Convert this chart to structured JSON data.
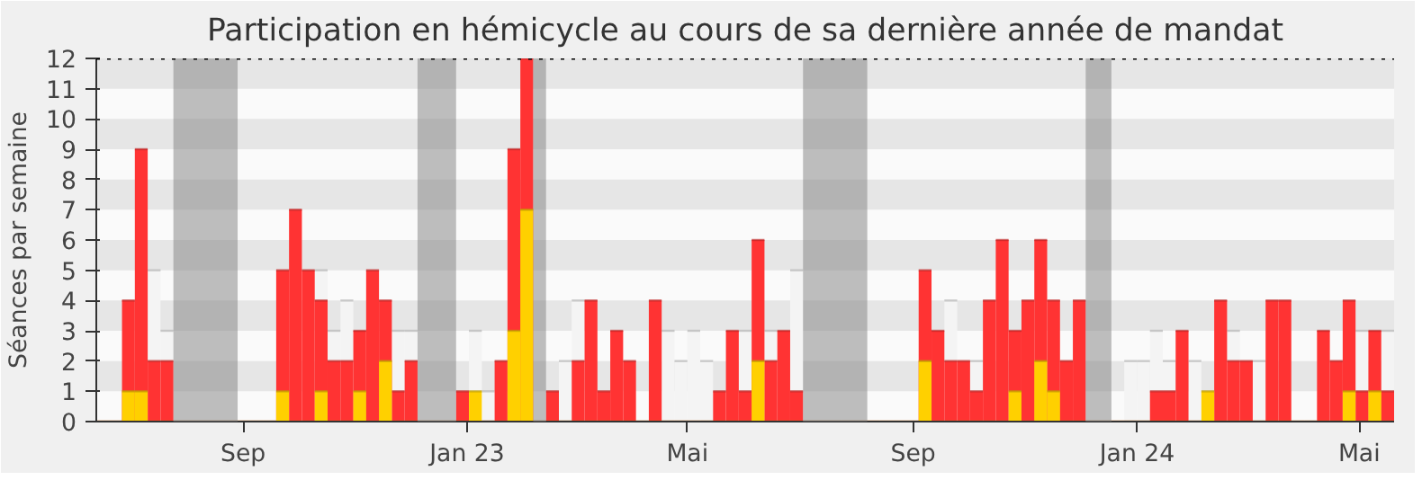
{
  "chart_data": {
    "type": "bar",
    "title": "Participation en hémicycle au cours de sa dernière année de mandat",
    "ylabel": "Séances par semaine",
    "x": [
      "2022-06-13",
      "2022-06-20",
      "2022-06-27",
      "2022-07-04",
      "2022-07-11",
      "2022-07-18",
      "2022-07-25",
      "2022-08-01",
      "2022-08-08",
      "2022-08-15",
      "2022-08-22",
      "2022-08-29",
      "2022-09-05",
      "2022-09-12",
      "2022-09-19",
      "2022-09-26",
      "2022-10-03",
      "2022-10-10",
      "2022-10-17",
      "2022-10-24",
      "2022-10-31",
      "2022-11-07",
      "2022-11-14",
      "2022-11-21",
      "2022-11-28",
      "2022-12-05",
      "2022-12-12",
      "2022-12-19",
      "2022-12-26",
      "2023-01-02",
      "2023-01-09",
      "2023-01-16",
      "2023-01-23",
      "2023-01-30",
      "2023-02-06",
      "2023-02-13",
      "2023-02-20",
      "2023-02-27",
      "2023-03-06",
      "2023-03-13",
      "2023-03-20",
      "2023-03-27",
      "2023-04-03",
      "2023-04-10",
      "2023-04-17",
      "2023-04-24",
      "2023-05-01",
      "2023-05-08",
      "2023-05-15",
      "2023-05-22",
      "2023-05-29",
      "2023-06-05",
      "2023-06-12",
      "2023-06-19",
      "2023-06-26",
      "2023-07-03",
      "2023-07-10",
      "2023-07-17",
      "2023-07-24",
      "2023-07-31",
      "2023-08-07",
      "2023-08-14",
      "2023-08-21",
      "2023-08-28",
      "2023-09-04",
      "2023-09-11",
      "2023-09-18",
      "2023-09-25",
      "2023-10-02",
      "2023-10-09",
      "2023-10-16",
      "2023-10-23",
      "2023-10-30",
      "2023-11-06",
      "2023-11-13",
      "2023-11-20",
      "2023-11-27",
      "2023-12-04",
      "2023-12-11",
      "2023-12-18",
      "2023-12-25",
      "2024-01-01",
      "2024-01-08",
      "2024-01-15",
      "2024-01-22",
      "2024-01-29",
      "2024-02-05",
      "2024-02-12",
      "2024-02-19",
      "2024-02-26",
      "2024-03-04",
      "2024-03-11",
      "2024-03-18",
      "2024-03-25",
      "2024-04-01",
      "2024-04-08",
      "2024-04-15",
      "2024-04-22",
      "2024-04-29",
      "2024-05-06",
      "2024-05-13"
    ],
    "series": [
      {
        "color": "#f4f4f4",
        "values": [
          null,
          null,
          null,
          null,
          5,
          3,
          null,
          null,
          null,
          null,
          null,
          null,
          null,
          null,
          null,
          null,
          null,
          5,
          3,
          4,
          null,
          null,
          null,
          3,
          3,
          null,
          null,
          null,
          null,
          3,
          1,
          null,
          null,
          null,
          null,
          null,
          2,
          4,
          null,
          null,
          null,
          null,
          null,
          null,
          3,
          2,
          3,
          2,
          null,
          null,
          3,
          null,
          3,
          null,
          5,
          null,
          null,
          null,
          null,
          null,
          null,
          null,
          null,
          null,
          null,
          null,
          4,
          null,
          2,
          null,
          null,
          null,
          null,
          null,
          null,
          null,
          null,
          null,
          null,
          null,
          2,
          2,
          3,
          2,
          null,
          2,
          null,
          null,
          3,
          null,
          2,
          null,
          null,
          null,
          null,
          null,
          null,
          null,
          3,
          null,
          3
        ]
      },
      {
        "color": "#ff3333",
        "values": [
          0,
          0,
          4,
          9,
          2,
          2,
          0,
          0,
          0,
          0,
          0,
          0,
          0,
          0,
          5,
          7,
          5,
          4,
          2,
          2,
          3,
          5,
          4,
          1,
          2,
          0,
          0,
          0,
          1,
          null,
          0,
          2,
          9,
          12,
          0,
          1,
          0,
          2,
          4,
          1,
          3,
          2,
          0,
          4,
          0,
          0,
          0,
          0,
          1,
          3,
          1,
          6,
          2,
          3,
          1,
          0,
          0,
          0,
          0,
          0,
          0,
          0,
          0,
          0,
          5,
          3,
          2,
          2,
          1,
          4,
          6,
          3,
          4,
          6,
          4,
          2,
          4,
          0,
          0,
          0,
          0,
          0,
          1,
          1,
          3,
          0,
          null,
          4,
          2,
          2,
          0,
          4,
          4,
          0,
          0,
          3,
          2,
          4,
          1,
          3,
          1
        ]
      },
      {
        "color": "#ffd000",
        "values": [
          0,
          0,
          1,
          1,
          0,
          0,
          0,
          0,
          0,
          0,
          0,
          0,
          0,
          0,
          1,
          0,
          0,
          1,
          0,
          0,
          1,
          0,
          2,
          0,
          0,
          0,
          0,
          0,
          0,
          1,
          0,
          0,
          3,
          7,
          0,
          0,
          0,
          0,
          0,
          0,
          0,
          0,
          0,
          0,
          0,
          0,
          0,
          0,
          0,
          0,
          0,
          2,
          0,
          0,
          0,
          0,
          0,
          0,
          0,
          0,
          0,
          0,
          0,
          0,
          2,
          0,
          0,
          0,
          0,
          0,
          0,
          1,
          0,
          2,
          1,
          0,
          0,
          0,
          0,
          0,
          0,
          0,
          0,
          0,
          0,
          0,
          1,
          0,
          0,
          0,
          0,
          0,
          0,
          0,
          0,
          0,
          0,
          1,
          0,
          1,
          0
        ]
      }
    ],
    "xlim": [
      "2022-06-13",
      "2024-05-20"
    ],
    "xticks": [
      {
        "value": "2022-09-01",
        "label": "Sep"
      },
      {
        "value": "2023-01-01",
        "label": "Jan 23"
      },
      {
        "value": "2023-05-01",
        "label": "Mai"
      },
      {
        "value": "2023-09-01",
        "label": "Sep"
      },
      {
        "value": "2024-01-01",
        "label": "Jan 24"
      },
      {
        "value": "2024-05-01",
        "label": "Mai"
      }
    ],
    "ylim": [
      0,
      12
    ],
    "yticks": [
      0,
      1,
      2,
      3,
      4,
      5,
      6,
      7,
      8,
      9,
      10,
      11,
      12
    ],
    "bands": [
      {
        "axis": "x",
        "from": "2022-07-25",
        "to": "2022-08-29",
        "color": "#808080"
      },
      {
        "axis": "x",
        "from": "2022-12-05",
        "to": "2022-12-26",
        "color": "#808080"
      },
      {
        "axis": "x",
        "from": "2023-02-06",
        "to": "2023-02-13",
        "color": "#808080"
      },
      {
        "axis": "x",
        "from": "2023-07-03",
        "to": "2023-08-07",
        "color": "#808080"
      },
      {
        "axis": "x",
        "from": "2023-12-04",
        "to": "2023-12-18",
        "color": "#808080"
      }
    ],
    "ref_lines": [
      {
        "axis": "y",
        "value": 12,
        "color": "#000000",
        "line_style": "dotted"
      }
    ]
  }
}
